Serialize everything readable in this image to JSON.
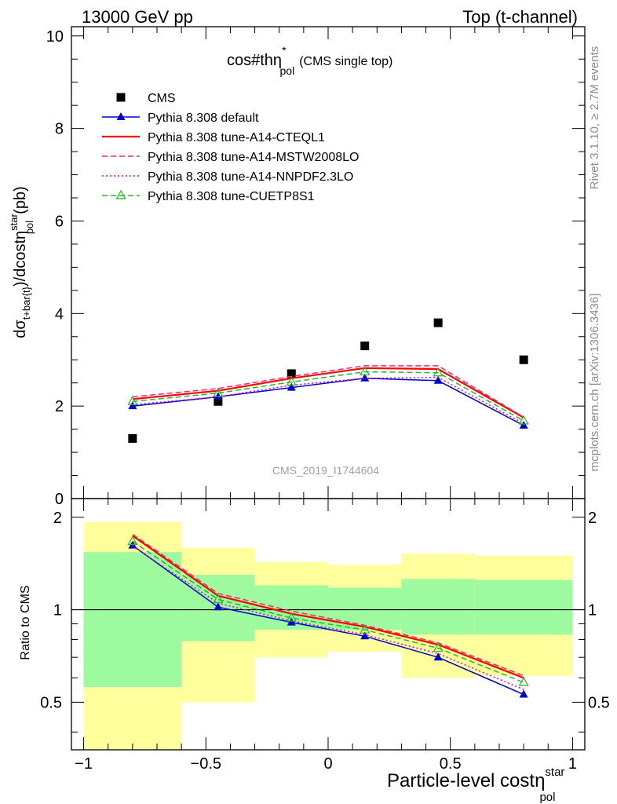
{
  "header": {
    "left": "13000 GeV pp",
    "right": "Top (t-channel)"
  },
  "side_labels": {
    "rivet": "Rivet 3.1.10, ≥ 2.7M events",
    "mcplots": "mcplots.cern.ch [arXiv:1306.3436]"
  },
  "watermark": "CMS_2019_I1744604",
  "chart_data": [
    {
      "type": "scatter",
      "panel": "main",
      "title_main": "cos#thη",
      "title_sup": "*",
      "title_sub": "pol",
      "title_suffix": "(CMS single top)",
      "ylabel_parts": {
        "a": "dσ",
        "a_sub": "t+bar{t}",
        "b": ")/dcostη",
        "b_sup": "star",
        "b_sub": "pol",
        "unit": "(pb)"
      },
      "xlim": [
        -1.05,
        1.05
      ],
      "ylim": [
        0,
        10.2
      ],
      "yticks": [
        0,
        2,
        4,
        6,
        8,
        10
      ],
      "grid": false,
      "legend_position": "top-left",
      "x": [
        -0.8,
        -0.45,
        -0.15,
        0.15,
        0.45,
        0.8
      ],
      "series": [
        {
          "name": "CMS",
          "color": "#000000",
          "style": "marker-square",
          "values": [
            1.3,
            2.1,
            2.7,
            3.3,
            3.8,
            3.0
          ]
        },
        {
          "name": "Pythia 8.308 default",
          "color": "#0000cc",
          "style": "solid-triangle",
          "values": [
            2.0,
            2.2,
            2.4,
            2.6,
            2.55,
            1.58
          ]
        },
        {
          "name": "Pythia 8.308 tune-A14-CTEQL1",
          "color": "#ff0000",
          "style": "solid-thick",
          "values": [
            2.15,
            2.33,
            2.6,
            2.82,
            2.8,
            1.75
          ]
        },
        {
          "name": "Pythia 8.308 tune-A14-MSTW2008LO",
          "color": "#ff1f6e",
          "style": "dashed",
          "values": [
            2.2,
            2.38,
            2.64,
            2.87,
            2.87,
            1.76
          ]
        },
        {
          "name": "Pythia 8.308 tune-A14-NNPDF2.3LO",
          "color": "#e000c0",
          "style": "dotted",
          "values": [
            2.03,
            2.2,
            2.45,
            2.6,
            2.62,
            1.62
          ]
        },
        {
          "name": "Pythia 8.308 tune-CUETP8S1",
          "color": "#22bb22",
          "style": "dashed-open-triangle",
          "values": [
            2.1,
            2.28,
            2.52,
            2.74,
            2.72,
            1.68
          ]
        }
      ]
    },
    {
      "type": "line",
      "panel": "ratio",
      "ylabel": "Ratio to CMS",
      "xlabel_main": "Particle-level costη",
      "xlabel_sup": "star",
      "xlabel_sub": "pol",
      "xlim": [
        -1.05,
        1.05
      ],
      "ylim": [
        0.35,
        2.3
      ],
      "xticks": [
        -1,
        -0.5,
        0,
        0.5,
        1
      ],
      "xtick_labels": [
        "−1",
        "−0.5",
        "0",
        "0.5",
        "1"
      ],
      "yticks": [
        0.5,
        1,
        2
      ],
      "ytick_labels": [
        "0.5",
        "1",
        "2"
      ],
      "bands": [
        {
          "x0": -1.0,
          "x1": -0.6,
          "yellow": [
            0.35,
            1.93
          ],
          "green": [
            0.56,
            1.54
          ]
        },
        {
          "x0": -0.6,
          "x1": -0.3,
          "yellow": [
            0.5,
            1.59
          ],
          "green": [
            0.79,
            1.3
          ]
        },
        {
          "x0": -0.3,
          "x1": 0.0,
          "yellow": [
            0.7,
            1.43
          ],
          "green": [
            0.86,
            1.2
          ]
        },
        {
          "x0": 0.0,
          "x1": 0.3,
          "yellow": [
            0.73,
            1.4
          ],
          "green": [
            0.86,
            1.18
          ]
        },
        {
          "x0": 0.3,
          "x1": 0.6,
          "yellow": [
            0.6,
            1.52
          ],
          "green": [
            0.83,
            1.26
          ]
        },
        {
          "x0": 0.6,
          "x1": 1.0,
          "yellow": [
            0.61,
            1.5
          ],
          "green": [
            0.83,
            1.25
          ]
        }
      ],
      "x": [
        -0.8,
        -0.45,
        -0.15,
        0.15,
        0.45,
        0.8
      ],
      "series": [
        {
          "name": "Pythia 8.308 default",
          "color": "#0000cc",
          "style": "solid-triangle",
          "values": [
            1.62,
            1.02,
            0.91,
            0.82,
            0.7,
            0.53
          ]
        },
        {
          "name": "Pythia 8.308 tune-A14-CTEQL1",
          "color": "#ff0000",
          "style": "solid-thick",
          "values": [
            1.74,
            1.11,
            0.97,
            0.88,
            0.77,
            0.6
          ]
        },
        {
          "name": "Pythia 8.308 tune-A14-MSTW2008LO",
          "color": "#ff1f6e",
          "style": "dashed",
          "values": [
            1.76,
            1.13,
            0.99,
            0.89,
            0.78,
            0.61
          ]
        },
        {
          "name": "Pythia 8.308 tune-A14-NNPDF2.3LO",
          "color": "#e000c0",
          "style": "dotted",
          "values": [
            1.61,
            1.05,
            0.92,
            0.83,
            0.72,
            0.55
          ]
        },
        {
          "name": "Pythia 8.308 tune-CUETP8S1",
          "color": "#22bb22",
          "style": "dashed-open-triangle",
          "values": [
            1.67,
            1.08,
            0.94,
            0.86,
            0.75,
            0.58
          ]
        }
      ]
    }
  ]
}
